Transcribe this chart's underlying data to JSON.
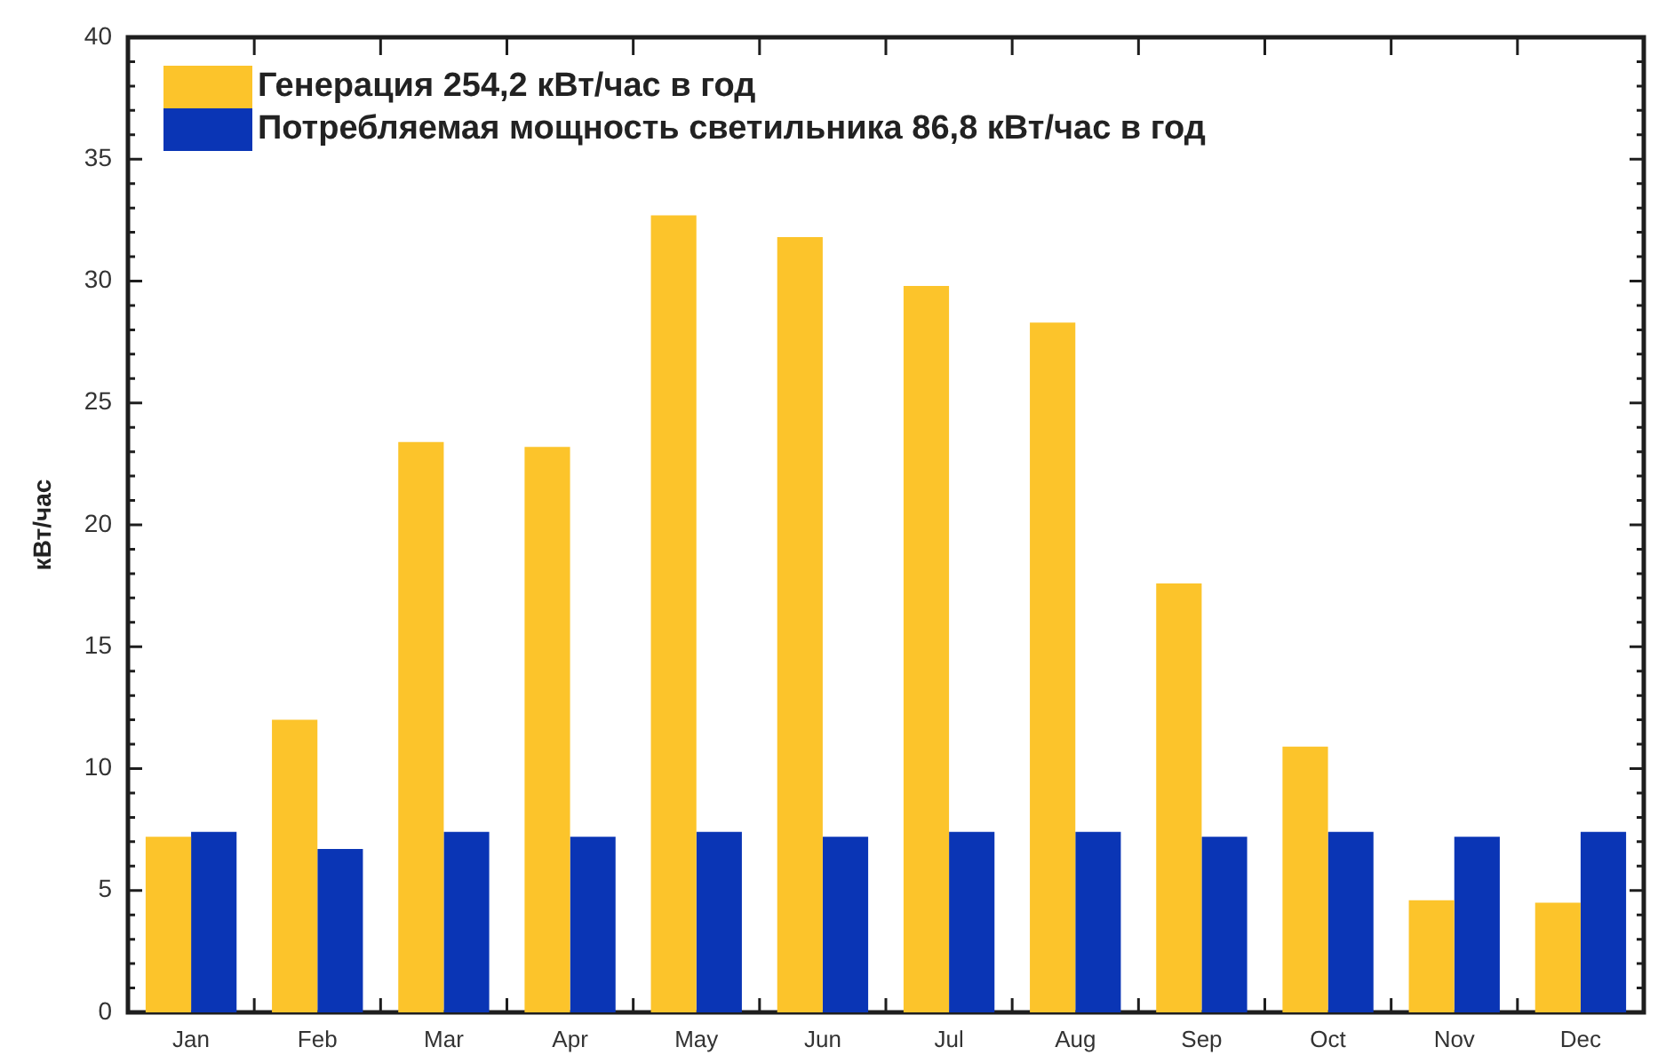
{
  "chart_data": {
    "type": "bar",
    "ylabel": "кВт/час",
    "categories": [
      "Jan",
      "Feb",
      "Mar",
      "Apr",
      "May",
      "Jun",
      "Jul",
      "Aug",
      "Sep",
      "Oct",
      "Nov",
      "Dec"
    ],
    "series": [
      {
        "name": "Генерация 254,2 кВт/час в год",
        "color": "#fcc42b",
        "values": [
          7.2,
          12.0,
          23.4,
          23.2,
          32.7,
          31.8,
          29.8,
          28.3,
          17.6,
          10.9,
          4.6,
          4.5
        ]
      },
      {
        "name": "Потребляемая мощность светильника 86,8 кВт/час в год",
        "color": "#0a35b5",
        "values": [
          7.4,
          6.7,
          7.4,
          7.2,
          7.4,
          7.2,
          7.4,
          7.4,
          7.2,
          7.4,
          7.2,
          7.4
        ]
      }
    ],
    "ylim": [
      0,
      40
    ],
    "yticks": [
      0,
      {
        "value": 1,
        "label": null
      },
      {
        "value": 2,
        "label": null
      },
      {
        "value": 3,
        "label": null
      },
      {
        "value": 4,
        "label": null
      },
      5,
      {
        "value": 6,
        "label": null
      },
      {
        "value": 7,
        "label": null
      },
      {
        "value": 8,
        "label": null
      },
      {
        "value": 9,
        "label": null
      },
      10,
      {
        "value": 11,
        "label": null
      },
      {
        "value": 12,
        "label": null
      },
      {
        "value": 13,
        "label": null
      },
      {
        "value": 14,
        "label": null
      },
      15,
      {
        "value": 16,
        "label": null
      },
      {
        "value": 17,
        "label": null
      },
      {
        "value": 18,
        "label": null
      },
      {
        "value": 19,
        "label": null
      },
      20,
      {
        "value": 21,
        "label": null
      },
      {
        "value": 22,
        "label": null
      },
      {
        "value": 23,
        "label": null
      },
      {
        "value": 24,
        "label": null
      },
      25,
      {
        "value": 26,
        "label": null
      },
      {
        "value": 27,
        "label": null
      },
      {
        "value": 28,
        "label": null
      },
      {
        "value": 29,
        "label": null
      },
      30,
      {
        "value": 31,
        "label": null
      },
      {
        "value": 32,
        "label": null
      },
      {
        "value": 33,
        "label": null
      },
      {
        "value": 34,
        "label": null
      },
      35,
      {
        "value": 36,
        "label": null
      },
      {
        "value": 37,
        "label": null
      },
      {
        "value": 38,
        "label": null
      },
      {
        "value": 39,
        "label": null
      },
      40
    ],
    "legend": "top left"
  }
}
